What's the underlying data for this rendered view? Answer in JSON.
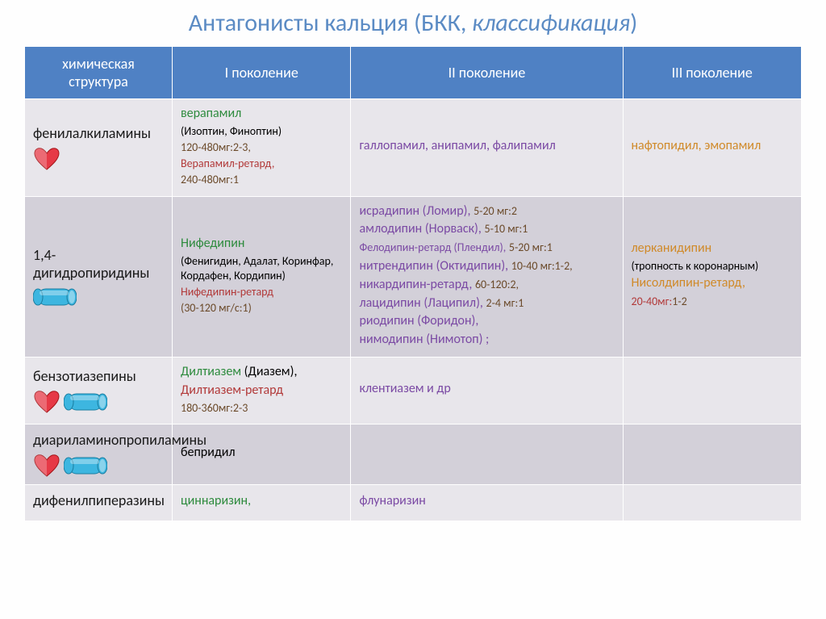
{
  "title_main": "Антагонисты кальция (БКК, ",
  "title_italic": "классификация",
  "title_end": ")",
  "colors": {
    "title": "#5b8bc4",
    "header_bg": "#4f81c4",
    "row_a": "#e8e6eb",
    "row_b": "#d3d0d9",
    "green": "#2e8b3e",
    "purple": "#7b4aa4",
    "orange": "#d08a2a",
    "red": "#b23a3a",
    "brown": "#6b4a2a",
    "heart_fill": "#e63946",
    "heart_stroke": "#a4161a",
    "cyl_fill": "#3db6e0",
    "cyl_stroke": "#1a7da0"
  },
  "headers": [
    "химическая структура",
    "I поколение",
    "II поколение",
    "III поколение"
  ],
  "rows": [
    {
      "structure": "фенилалкиламины",
      "icons": [
        "heart"
      ],
      "gen1": [
        {
          "text": "верапамил",
          "cls": "green mid"
        },
        {
          "text": "(Изоптин, Финоптин)",
          "cls": "small"
        },
        {
          "text": "120-480мг:2-3,",
          "cls": "small brown"
        },
        {
          "text": "Верапамил-ретард,",
          "cls": "redtxt small"
        },
        {
          "text": "240-480мг:1",
          "cls": "small brown"
        }
      ],
      "gen2": [
        {
          "text": "галлопамил, анипамил, фалипамил",
          "cls": "purple mid"
        }
      ],
      "gen3": [
        {
          "text": "нафтопидил, эмопамил",
          "cls": "orange mid"
        }
      ]
    },
    {
      "structure": "1,4-дигидропиридины",
      "icons": [
        "cylinder"
      ],
      "gen1": [
        {
          "text": "Нифедипин",
          "cls": "green mid"
        },
        {
          "text": "(Фенигидин, Адалат, Коринфар, Кордафен, Кордипин)",
          "cls": "small"
        },
        {
          "text": "Нифедипин-ретард",
          "cls": "redtxt small"
        },
        {
          "text": "(30-120 мг/с:1)",
          "cls": "small brown"
        }
      ],
      "gen2": [
        {
          "html": "<span class='purple'>исрадипин (Ломир),</span> <span class='brown small'>5-20 мг:2</span>"
        },
        {
          "html": "<span class='purple'>амлодипин (Норваск),</span> <span class='brown small'>5-10 мг:1</span>"
        },
        {
          "html": "<span class='purple small'>Фелодипин-ретард (Плендил),</span> <span class='brown small'>5-20 мг:1</span>"
        },
        {
          "html": "<span class='purple'>нитрендипин (Октидипин),</span> <span class='brown small'>10-40 мг:1-2,</span>"
        },
        {
          "html": "<span class='purple'>никардипин-ретард,</span> <span class='brown small'>60-120:2,</span>"
        },
        {
          "html": "<span class='purple'>лацидипин (Лаципил),</span> <span class='brown small'>2-4 мг:1</span>"
        },
        {
          "html": "<span class='purple'>риодипин (Форидон),</span>"
        },
        {
          "html": "<span class='purple'>нимодипин (Нимотоп) ;</span>"
        }
      ],
      "gen3": [
        {
          "text": "лерканидипин",
          "cls": "orange mid"
        },
        {
          "text": "(тропность к коронарным)",
          "cls": "small"
        },
        {
          "text": "Нисолдипин-ретард,",
          "cls": "orange mid"
        },
        {
          "html": "<span class='redtxt small'>20-40мг:</span><span class='brown small'>1-2</span>"
        }
      ]
    },
    {
      "structure": "бензотиазепины",
      "icons": [
        "heart",
        "cylinder"
      ],
      "gen1": [
        {
          "html": "<span class='green'>Дилтиазем</span> <span>(Диазем),</span>"
        },
        {
          "text": "Дилтиазем-ретард",
          "cls": "redtxt"
        },
        {
          "text": "180-360мг:2-3",
          "cls": "brown small"
        }
      ],
      "gen2": [
        {
          "text": "клентиазем и др",
          "cls": "purple mid"
        }
      ],
      "gen3": []
    },
    {
      "structure": "диариламинопропиламины",
      "icons": [
        "heart",
        "cylinder"
      ],
      "gen1": [
        {
          "text": "бепридил",
          "cls": "mid"
        }
      ],
      "gen2": [],
      "gen3": []
    },
    {
      "structure": "дифенилпиперазины",
      "icons": [],
      "gen1": [
        {
          "text": "циннаризин,",
          "cls": "green mid"
        }
      ],
      "gen2": [
        {
          "text": "флунаризин",
          "cls": "purple mid"
        }
      ],
      "gen3": []
    }
  ]
}
